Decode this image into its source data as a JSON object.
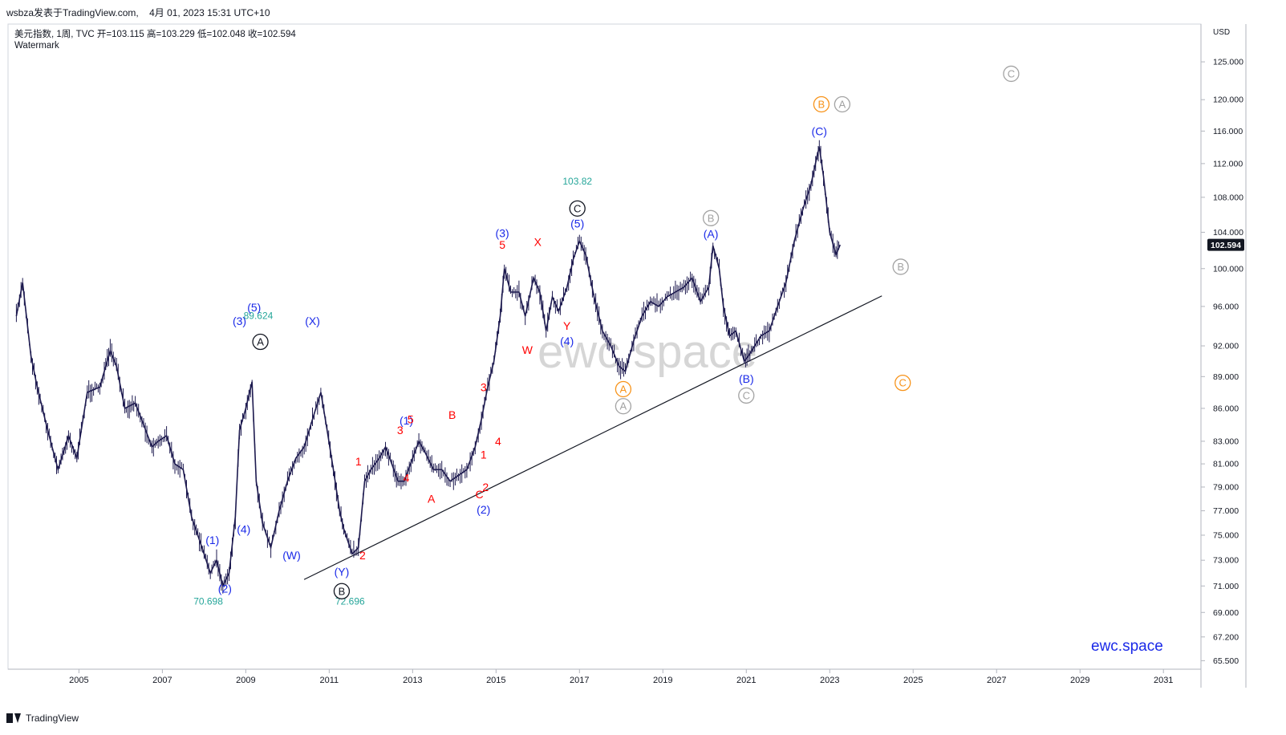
{
  "header": {
    "attribution": "wsbza发表于TradingView.com,",
    "timestamp": "4月 01, 2023 15:31 UTC+10",
    "symbol_line": "美元指数, 1周, TVC  开=103.115  高=103.229  低=102.048  收=102.594",
    "subtitle": "Watermark"
  },
  "footer": {
    "brand": "TradingView"
  },
  "watermark": {
    "center": "ewc.space",
    "corner": "ewc.space"
  },
  "colors": {
    "candle": "#1d1a4f",
    "wave_blue": "#1a29e8",
    "wave_red": "#ff0000",
    "wave_orange": "#f7931a",
    "wave_gray": "#a3a3a3",
    "annotation_teal": "#26a69a",
    "price_tag": "#131722"
  },
  "chart_data": {
    "type": "line",
    "title": "美元指数, 1周, TVC",
    "currency_label": "USD",
    "xlabel": "",
    "ylabel": "",
    "scale": "log",
    "xlim": [
      2003.3,
      2031.9
    ],
    "ylim": [
      64.9,
      130.2
    ],
    "grid": false,
    "x_ticks": [
      "2005",
      "2007",
      "2009",
      "2011",
      "2013",
      "2015",
      "2017",
      "2019",
      "2021",
      "2023",
      "2025",
      "2027",
      "2029",
      "2031"
    ],
    "y_ticks": [
      "65.500",
      "67.200",
      "69.000",
      "71.000",
      "73.000",
      "75.000",
      "77.000",
      "79.000",
      "81.000",
      "83.000",
      "86.000",
      "89.000",
      "92.000",
      "96.000",
      "100.000",
      "104.000",
      "108.000",
      "112.000",
      "116.000",
      "120.000",
      "125.000"
    ],
    "last_price": "102.594",
    "series": [
      {
        "x": [
          2003.5,
          2003.65,
          2003.85,
          2004.0,
          2004.25,
          2004.5,
          2004.75,
          2004.95,
          2005.2,
          2005.5,
          2005.75,
          2005.9,
          2006.1,
          2006.35,
          2006.55,
          2006.75,
          2006.9,
          2007.1,
          2007.3,
          2007.5,
          2007.7,
          2007.85,
          2008.0,
          2008.15,
          2008.3,
          2008.45,
          2008.6,
          2008.75,
          2008.85,
          2009.0,
          2009.15,
          2009.25,
          2009.4,
          2009.6,
          2009.8,
          2010.0,
          2010.2,
          2010.4,
          2010.6,
          2010.8,
          2010.95,
          2011.1,
          2011.25,
          2011.35,
          2011.55,
          2011.7,
          2011.85,
          2012.0,
          2012.2,
          2012.35,
          2012.5,
          2012.65,
          2012.8,
          2013.0,
          2013.15,
          2013.3,
          2013.5,
          2013.7,
          2013.9,
          2014.1,
          2014.3,
          2014.5,
          2014.65,
          2014.8,
          2014.95,
          2015.1,
          2015.2,
          2015.35,
          2015.55,
          2015.7,
          2015.9,
          2016.05,
          2016.2,
          2016.35,
          2016.5,
          2016.7,
          2016.85,
          2017.0,
          2017.15,
          2017.35,
          2017.55,
          2017.75,
          2017.95,
          2018.1,
          2018.3,
          2018.5,
          2018.7,
          2018.9,
          2019.1,
          2019.3,
          2019.5,
          2019.7,
          2019.9,
          2020.1,
          2020.2,
          2020.35,
          2020.45,
          2020.6,
          2020.75,
          2020.95,
          2021.05,
          2021.2,
          2021.35,
          2021.55,
          2021.75,
          2021.95,
          2022.15,
          2022.35,
          2022.55,
          2022.7,
          2022.75,
          2022.85,
          2023.0,
          2023.15,
          2023.25
        ],
        "y": [
          95.0,
          98.5,
          91.0,
          88.0,
          84.0,
          80.5,
          83.5,
          81.5,
          87.5,
          88.0,
          91.5,
          90.0,
          86.0,
          86.5,
          84.5,
          82.5,
          83.0,
          83.5,
          81.0,
          80.5,
          76.5,
          75.0,
          73.5,
          72.0,
          73.0,
          71.0,
          72.0,
          76.5,
          84.0,
          86.0,
          88.5,
          79.5,
          76.0,
          74.0,
          77.0,
          79.5,
          81.5,
          82.5,
          85.0,
          87.5,
          84.0,
          80.5,
          77.0,
          75.5,
          73.5,
          74.0,
          79.5,
          80.5,
          81.5,
          82.5,
          81.0,
          79.5,
          79.5,
          81.5,
          83.0,
          82.0,
          80.5,
          80.5,
          79.5,
          80.0,
          80.5,
          82.5,
          85.0,
          88.0,
          90.5,
          95.0,
          100.0,
          97.5,
          97.5,
          95.0,
          99.0,
          97.5,
          93.5,
          97.0,
          95.5,
          98.0,
          101.0,
          103.0,
          101.5,
          97.0,
          93.5,
          92.0,
          90.0,
          89.5,
          92.5,
          95.0,
          96.5,
          96.0,
          97.0,
          97.5,
          98.0,
          99.0,
          96.5,
          98.0,
          102.5,
          100.0,
          96.0,
          93.0,
          93.5,
          90.5,
          91.0,
          92.0,
          93.0,
          93.5,
          96.0,
          98.5,
          103.0,
          106.5,
          109.5,
          113.0,
          114.0,
          110.5,
          104.0,
          101.5,
          102.6
        ]
      }
    ],
    "trendline": {
      "x": [
        2010.4,
        2024.25
      ],
      "y": [
        71.5,
        97.1
      ]
    },
    "annotations": [
      {
        "text": "89.624",
        "x": 2009.3,
        "y": 94.7,
        "style": "value"
      },
      {
        "text": "70.698",
        "x": 2008.1,
        "y": 69.6,
        "style": "value"
      },
      {
        "text": "72.696",
        "x": 2011.5,
        "y": 69.6,
        "style": "value"
      },
      {
        "text": "103.82",
        "x": 2016.95,
        "y": 109.5,
        "style": "value"
      },
      {
        "text": "A",
        "x": 2009.35,
        "y": 92.4,
        "style": "circled",
        "color": "black"
      },
      {
        "text": "B",
        "x": 2011.3,
        "y": 70.6,
        "style": "circled",
        "color": "black"
      },
      {
        "text": "C",
        "x": 2016.95,
        "y": 106.7,
        "style": "circled",
        "color": "black"
      },
      {
        "text": "A",
        "x": 2018.05,
        "y": 87.8,
        "style": "circled",
        "color": "orange"
      },
      {
        "text": "A",
        "x": 2018.05,
        "y": 86.2,
        "style": "circled",
        "color": "gray"
      },
      {
        "text": "B",
        "x": 2020.15,
        "y": 105.6,
        "style": "circled",
        "color": "gray"
      },
      {
        "text": "C",
        "x": 2021.0,
        "y": 87.2,
        "style": "circled",
        "color": "gray"
      },
      {
        "text": "B",
        "x": 2022.8,
        "y": 119.4,
        "style": "circled",
        "color": "orange"
      },
      {
        "text": "A",
        "x": 2023.3,
        "y": 119.4,
        "style": "circled",
        "color": "gray"
      },
      {
        "text": "C",
        "x": 2027.35,
        "y": 123.4,
        "style": "circled",
        "color": "gray"
      },
      {
        "text": "B",
        "x": 2024.7,
        "y": 100.2,
        "style": "circled",
        "color": "gray"
      },
      {
        "text": "C",
        "x": 2024.75,
        "y": 88.4,
        "style": "circled",
        "color": "orange"
      },
      {
        "text": "(1)",
        "x": 2008.2,
        "y": 74.6,
        "style": "label",
        "color": "blue"
      },
      {
        "text": "(2)",
        "x": 2008.5,
        "y": 70.8,
        "style": "label",
        "color": "blue"
      },
      {
        "text": "(3)",
        "x": 2008.85,
        "y": 94.5,
        "style": "label",
        "color": "blue"
      },
      {
        "text": "(4)",
        "x": 2008.95,
        "y": 75.5,
        "style": "label",
        "color": "blue"
      },
      {
        "text": "(5)",
        "x": 2009.2,
        "y": 95.9,
        "style": "label",
        "color": "blue"
      },
      {
        "text": "(W)",
        "x": 2010.1,
        "y": 73.4,
        "style": "label",
        "color": "blue"
      },
      {
        "text": "(X)",
        "x": 2010.6,
        "y": 94.5,
        "style": "label",
        "color": "blue"
      },
      {
        "text": "(Y)",
        "x": 2011.3,
        "y": 72.1,
        "style": "label",
        "color": "blue"
      },
      {
        "text": "(1)",
        "x": 2012.85,
        "y": 84.9,
        "style": "label",
        "color": "blue"
      },
      {
        "text": "(2)",
        "x": 2014.7,
        "y": 77.1,
        "style": "label",
        "color": "blue"
      },
      {
        "text": "(3)",
        "x": 2015.15,
        "y": 103.9,
        "style": "label",
        "color": "blue"
      },
      {
        "text": "(4)",
        "x": 2016.7,
        "y": 92.5,
        "style": "label",
        "color": "blue"
      },
      {
        "text": "(5)",
        "x": 2016.95,
        "y": 105.0,
        "style": "label",
        "color": "blue"
      },
      {
        "text": "(A)",
        "x": 2020.15,
        "y": 103.8,
        "style": "label",
        "color": "blue"
      },
      {
        "text": "(B)",
        "x": 2021.0,
        "y": 88.8,
        "style": "label",
        "color": "blue"
      },
      {
        "text": "(C)",
        "x": 2022.75,
        "y": 116.0,
        "style": "label",
        "color": "blue"
      },
      {
        "text": "1",
        "x": 2011.7,
        "y": 81.2,
        "style": "label",
        "color": "red"
      },
      {
        "text": "2",
        "x": 2011.8,
        "y": 73.4,
        "style": "label",
        "color": "red"
      },
      {
        "text": "3",
        "x": 2012.7,
        "y": 84.0,
        "style": "label",
        "color": "red"
      },
      {
        "text": "4",
        "x": 2012.85,
        "y": 79.8,
        "style": "label",
        "color": "red"
      },
      {
        "text": "5",
        "x": 2012.95,
        "y": 85.0,
        "style": "label",
        "color": "red"
      },
      {
        "text": "A",
        "x": 2013.45,
        "y": 78.0,
        "style": "label",
        "color": "red"
      },
      {
        "text": "B",
        "x": 2013.95,
        "y": 85.4,
        "style": "label",
        "color": "red"
      },
      {
        "text": "C",
        "x": 2014.6,
        "y": 78.4,
        "style": "label",
        "color": "red"
      },
      {
        "text": "1",
        "x": 2014.7,
        "y": 81.8,
        "style": "label",
        "color": "red"
      },
      {
        "text": "2",
        "x": 2014.75,
        "y": 79.0,
        "style": "label",
        "color": "red"
      },
      {
        "text": "3",
        "x": 2014.7,
        "y": 88.0,
        "style": "label",
        "color": "red"
      },
      {
        "text": "4",
        "x": 2015.05,
        "y": 83.0,
        "style": "label",
        "color": "red"
      },
      {
        "text": "5",
        "x": 2015.15,
        "y": 102.6,
        "style": "label",
        "color": "red"
      },
      {
        "text": "X",
        "x": 2016.0,
        "y": 102.9,
        "style": "label",
        "color": "red"
      },
      {
        "text": "W",
        "x": 2015.75,
        "y": 91.6,
        "style": "label",
        "color": "red"
      },
      {
        "text": "Y",
        "x": 2016.7,
        "y": 94.0,
        "style": "label",
        "color": "red"
      }
    ]
  }
}
